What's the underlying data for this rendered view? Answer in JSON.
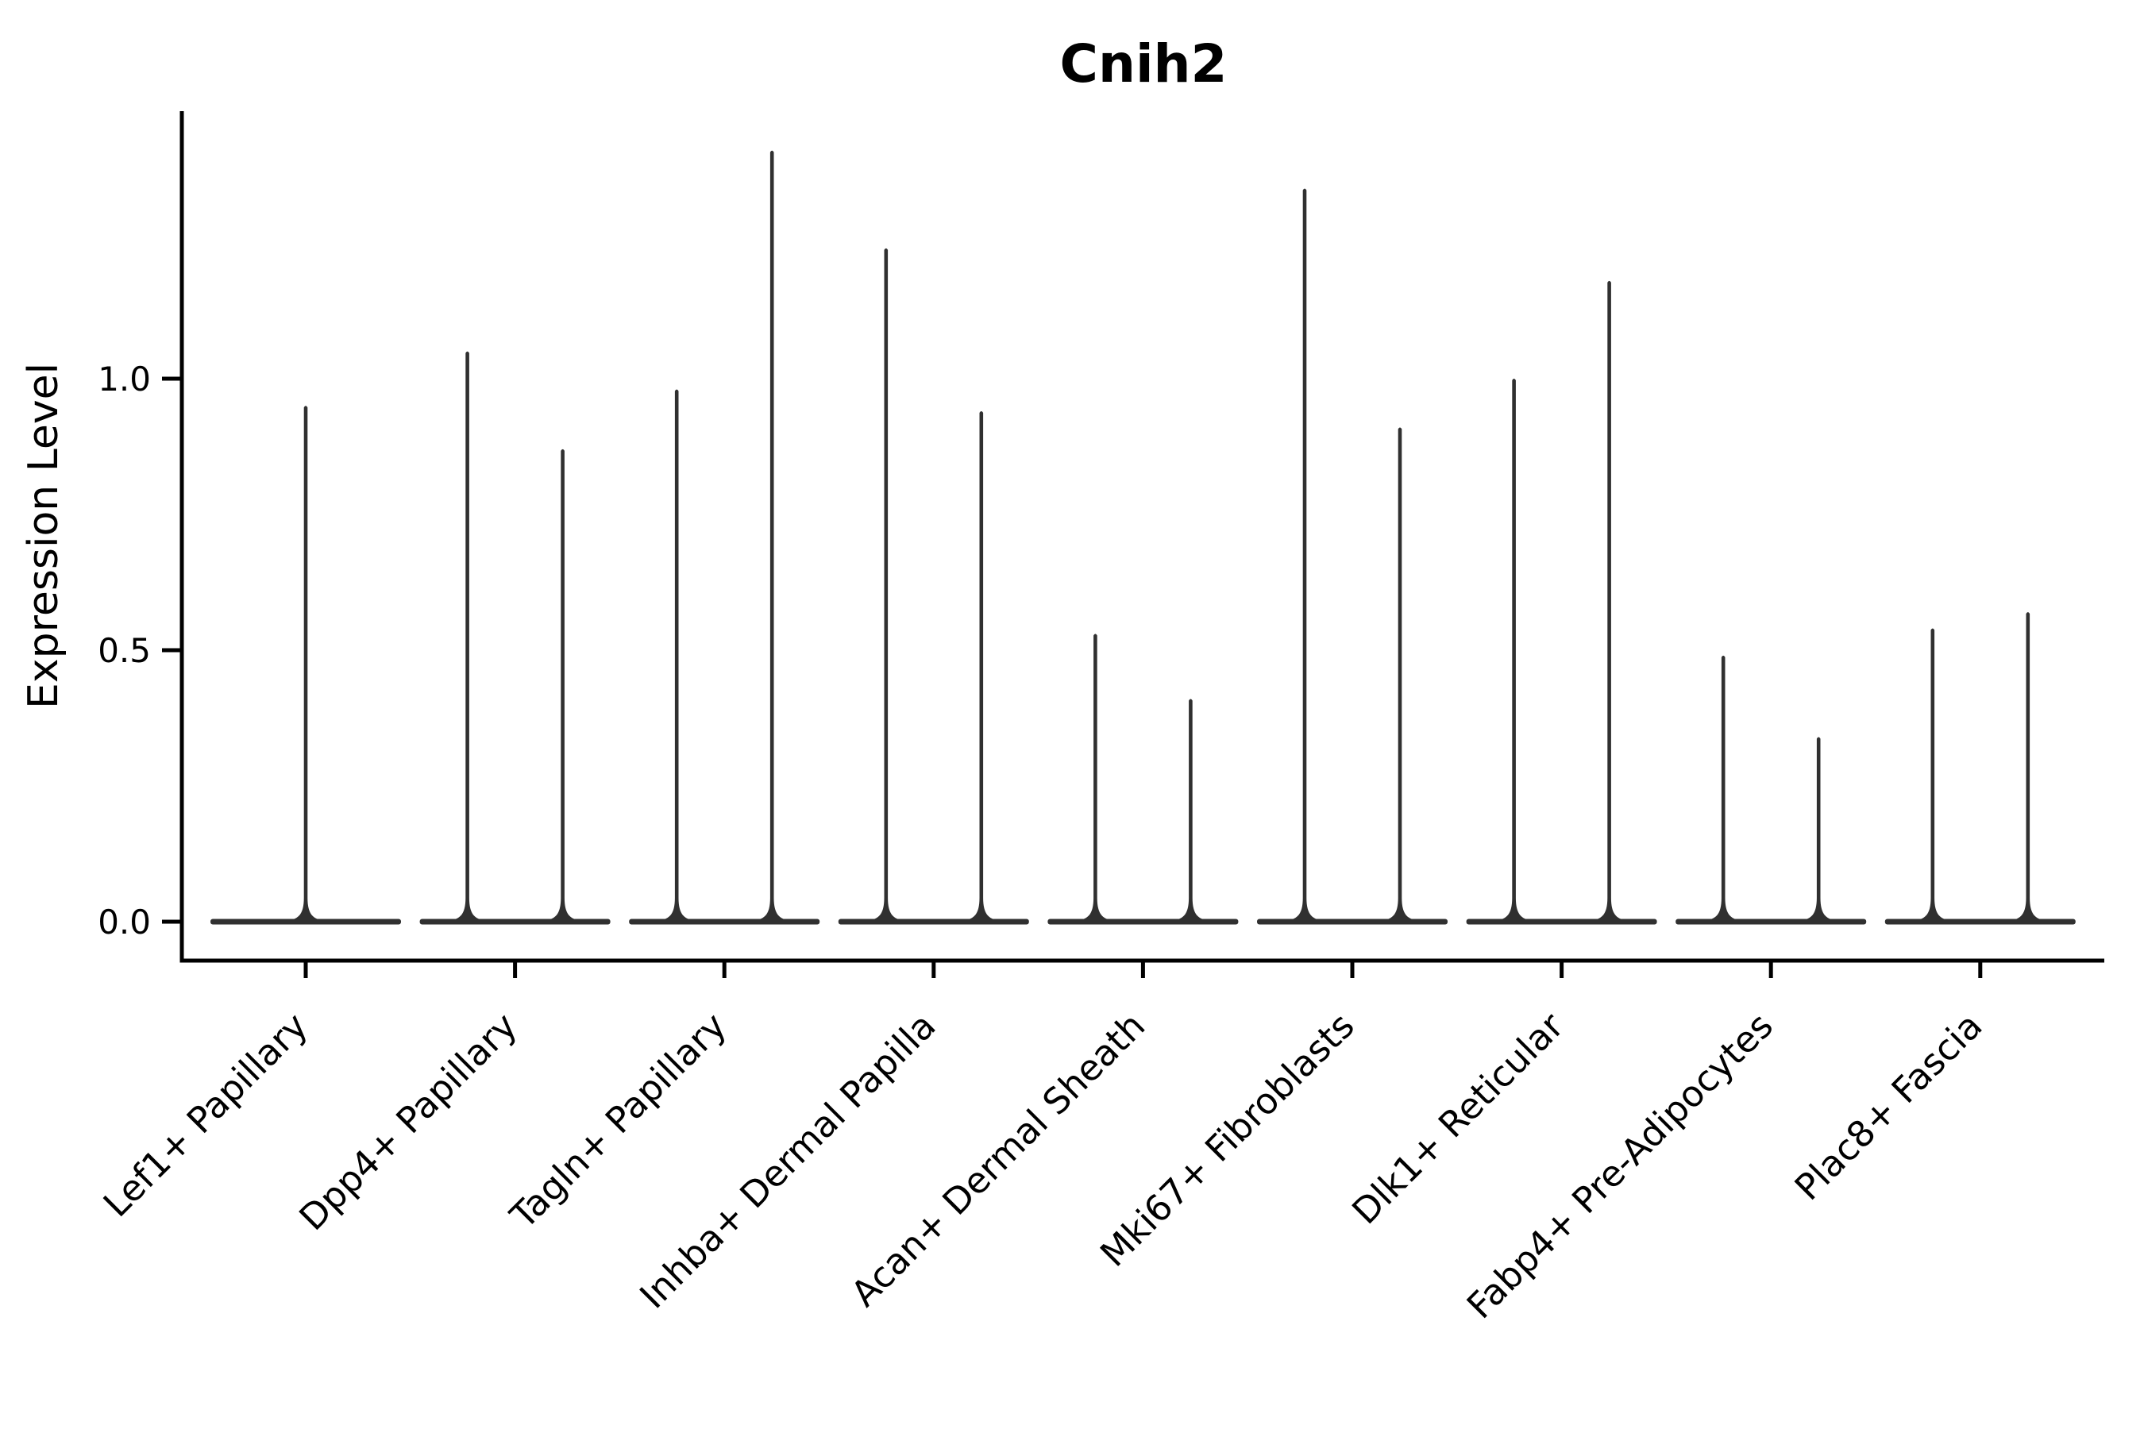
{
  "figure": {
    "title": "Cnih2",
    "ylabel": "Expression Level",
    "xlabel": ""
  },
  "chart_data": {
    "type": "violin",
    "title": "Cnih2",
    "ylabel": "Expression Level",
    "xlabel": "",
    "legend": null,
    "grid": false,
    "yticks": [
      0.0,
      0.5,
      1.0
    ],
    "ylim": [
      -0.07,
      1.49
    ],
    "baseline_value": 0.0,
    "categories": [
      "Lef1+ Papillary",
      "Dpp4+ Papillary",
      "Tagln+ Papillary",
      "Inhba+ Dermal Papilla",
      "Acan+ Dermal Sheath",
      "Mki67+ Fibroblasts",
      "Dlk1+ Reticular",
      "Fabp4+ Pre-Adipocytes",
      "Plac8+ Fascia"
    ],
    "series": [
      {
        "category": "Lef1+ Papillary",
        "violin_maxima": [
          0.95
        ]
      },
      {
        "category": "Dpp4+ Papillary",
        "violin_maxima": [
          1.05,
          0.87
        ]
      },
      {
        "category": "Tagln+ Papillary",
        "violin_maxima": [
          0.98,
          1.42
        ]
      },
      {
        "category": "Inhba+ Dermal Papilla",
        "violin_maxima": [
          1.24,
          0.94
        ]
      },
      {
        "category": "Acan+ Dermal Sheath",
        "violin_maxima": [
          0.53,
          0.41
        ]
      },
      {
        "category": "Mki67+ Fibroblasts",
        "violin_maxima": [
          1.35,
          0.91
        ]
      },
      {
        "category": "Dlk1+ Reticular",
        "violin_maxima": [
          1.0,
          1.18
        ]
      },
      {
        "category": "Fabp4+ Pre-Adipocytes",
        "violin_maxima": [
          0.49,
          0.34
        ]
      },
      {
        "category": "Plac8+ Fascia",
        "violin_maxima": [
          0.54,
          0.57
        ]
      }
    ],
    "colors": {
      "violin": "#303030",
      "axis": "#000000",
      "text": "#000000",
      "background": "#ffffff"
    }
  }
}
